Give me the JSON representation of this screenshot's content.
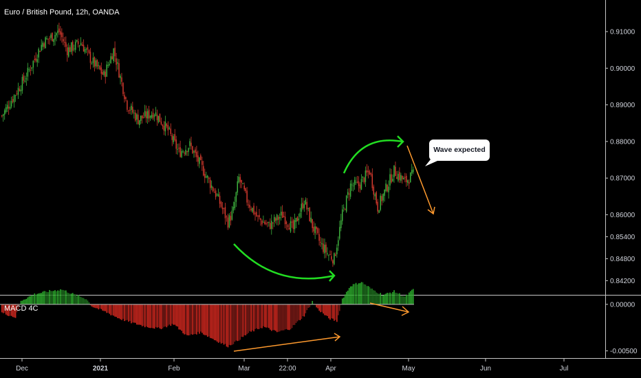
{
  "chart_data": [
    {
      "type": "candlestick",
      "title": "Euro / British Pound, 12h, OANDA",
      "ylim": [
        0.8385,
        0.9175
      ],
      "y_ticks": [
        "0.91000",
        "0.90000",
        "0.89000",
        "0.88000",
        "0.87000",
        "0.86000",
        "0.85400",
        "0.84800",
        "0.84200"
      ],
      "y_tick_values": [
        0.91,
        0.9,
        0.89,
        0.88,
        0.87,
        0.86,
        0.854,
        0.848,
        0.842
      ],
      "x_ticks": [
        "Dec",
        "2021",
        "Feb",
        "Mar",
        "22:00",
        "Apr",
        "May",
        "Jun",
        "Jul"
      ],
      "close_path": [
        {
          "t": 0,
          "v": 0.887
        },
        {
          "t": 18,
          "v": 0.898
        },
        {
          "t": 30,
          "v": 0.907
        },
        {
          "t": 42,
          "v": 0.91
        },
        {
          "t": 48,
          "v": 0.905
        },
        {
          "t": 58,
          "v": 0.907
        },
        {
          "t": 66,
          "v": 0.902
        },
        {
          "t": 75,
          "v": 0.898
        },
        {
          "t": 82,
          "v": 0.905
        },
        {
          "t": 92,
          "v": 0.89
        },
        {
          "t": 100,
          "v": 0.886
        },
        {
          "t": 112,
          "v": 0.888
        },
        {
          "t": 122,
          "v": 0.883
        },
        {
          "t": 130,
          "v": 0.877
        },
        {
          "t": 138,
          "v": 0.879
        },
        {
          "t": 148,
          "v": 0.872
        },
        {
          "t": 158,
          "v": 0.865
        },
        {
          "t": 166,
          "v": 0.858
        },
        {
          "t": 170,
          "v": 0.861
        },
        {
          "t": 174,
          "v": 0.87
        },
        {
          "t": 180,
          "v": 0.864
        },
        {
          "t": 188,
          "v": 0.859
        },
        {
          "t": 196,
          "v": 0.857
        },
        {
          "t": 206,
          "v": 0.86
        },
        {
          "t": 214,
          "v": 0.856
        },
        {
          "t": 222,
          "v": 0.864
        },
        {
          "t": 228,
          "v": 0.857
        },
        {
          "t": 234,
          "v": 0.852
        },
        {
          "t": 240,
          "v": 0.849
        },
        {
          "t": 244,
          "v": 0.848
        },
        {
          "t": 250,
          "v": 0.86
        },
        {
          "t": 256,
          "v": 0.868
        },
        {
          "t": 262,
          "v": 0.868
        },
        {
          "t": 270,
          "v": 0.872
        },
        {
          "t": 276,
          "v": 0.862
        },
        {
          "t": 282,
          "v": 0.867
        },
        {
          "t": 288,
          "v": 0.872
        },
        {
          "t": 296,
          "v": 0.869
        },
        {
          "t": 302,
          "v": 0.871
        }
      ],
      "annotations": {
        "callout_text": "Wave expected",
        "arrow_colors": {
          "green": "#22dd22",
          "orange": "#ff9a2e"
        }
      },
      "colors": {
        "up": "#26a69a",
        "up_bar": "#3fb23f",
        "down": "#d43a2e",
        "background": "#000000",
        "axis_text": "#d1d4dc"
      }
    },
    {
      "type": "histogram",
      "title": "MACD 4C",
      "ylim": [
        -0.0057,
        0.0008
      ],
      "y_ticks": [
        "0.00000",
        "-0.00500"
      ],
      "y_tick_values": [
        0.0,
        -0.005
      ],
      "hist_path": [
        {
          "t": 0,
          "v": -0.0009
        },
        {
          "t": 10,
          "v": -0.0014
        },
        {
          "t": 14,
          "v": 0.0004
        },
        {
          "t": 24,
          "v": 0.0011
        },
        {
          "t": 34,
          "v": 0.0014
        },
        {
          "t": 44,
          "v": 0.0016
        },
        {
          "t": 54,
          "v": 0.001
        },
        {
          "t": 62,
          "v": 0.0006
        },
        {
          "t": 66,
          "v": -0.0002
        },
        {
          "t": 76,
          "v": -0.0008
        },
        {
          "t": 86,
          "v": -0.0015
        },
        {
          "t": 96,
          "v": -0.002
        },
        {
          "t": 106,
          "v": -0.0024
        },
        {
          "t": 116,
          "v": -0.0026
        },
        {
          "t": 126,
          "v": -0.0021
        },
        {
          "t": 136,
          "v": -0.0034
        },
        {
          "t": 146,
          "v": -0.003
        },
        {
          "t": 156,
          "v": -0.0038
        },
        {
          "t": 166,
          "v": -0.0045
        },
        {
          "t": 172,
          "v": -0.004
        },
        {
          "t": 182,
          "v": -0.003
        },
        {
          "t": 192,
          "v": -0.0024
        },
        {
          "t": 202,
          "v": -0.003
        },
        {
          "t": 212,
          "v": -0.0026
        },
        {
          "t": 222,
          "v": -0.0012
        },
        {
          "t": 228,
          "v": 0.0003
        },
        {
          "t": 232,
          "v": -0.0005
        },
        {
          "t": 240,
          "v": -0.0015
        },
        {
          "t": 246,
          "v": -0.0018
        },
        {
          "t": 250,
          "v": 0.0006
        },
        {
          "t": 256,
          "v": 0.002
        },
        {
          "t": 264,
          "v": 0.0024
        },
        {
          "t": 272,
          "v": 0.0016
        },
        {
          "t": 280,
          "v": 0.001
        },
        {
          "t": 288,
          "v": 0.0014
        },
        {
          "t": 296,
          "v": 0.0008
        },
        {
          "t": 302,
          "v": 0.0016
        }
      ],
      "colors": {
        "pos": "#2ba82b",
        "pos_dark": "#1e6e1e",
        "neg": "#d0281f",
        "neg_dark": "#7a1a16"
      }
    }
  ]
}
